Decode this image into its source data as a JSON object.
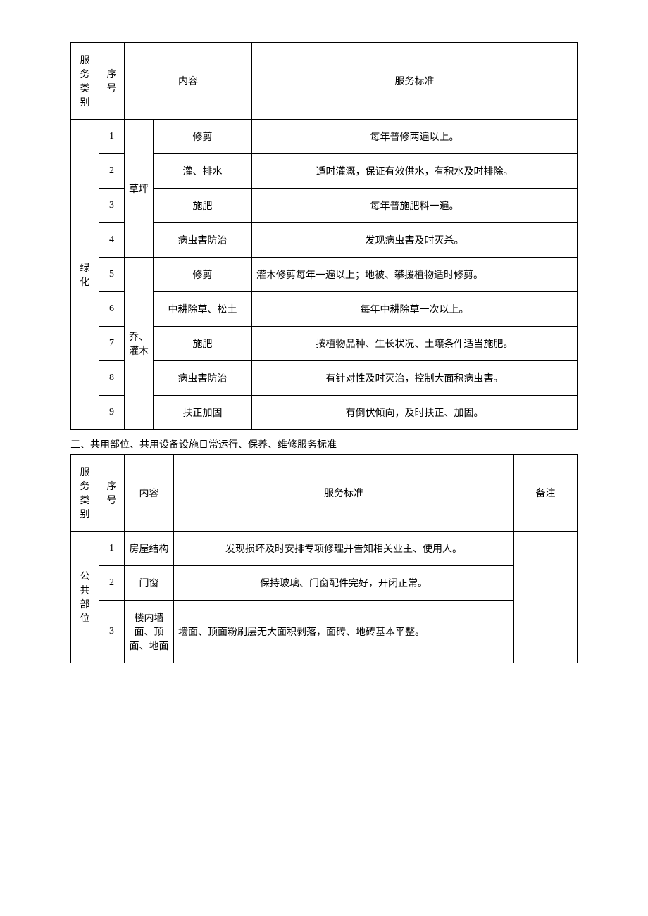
{
  "table1": {
    "header": {
      "category": "服务类别",
      "seq": "序号",
      "content": "内容",
      "standard": "服务标准"
    },
    "category_label": "绿化",
    "subcategories": {
      "lawn": "草坪",
      "trees": "乔、灌木"
    },
    "rows": [
      {
        "seq": "1",
        "content": "修剪",
        "standard": "每年普修两遍以上。"
      },
      {
        "seq": "2",
        "content": "灌、排水",
        "standard": "适时灌溉，保证有效供水，有积水及时排除。"
      },
      {
        "seq": "3",
        "content": "施肥",
        "standard": "每年普施肥料一遍。"
      },
      {
        "seq": "4",
        "content": "病虫害防治",
        "standard": "发现病虫害及时灭杀。"
      },
      {
        "seq": "5",
        "content": "修剪",
        "standard": "灌木修剪每年一遍以上；地被、攀援植物适时修剪。"
      },
      {
        "seq": "6",
        "content": "中耕除草、松土",
        "standard": "每年中耕除草一次以上。"
      },
      {
        "seq": "7",
        "content": "施肥",
        "standard": "按植物品种、生长状况、土壤条件适当施肥。"
      },
      {
        "seq": "8",
        "content": "病虫害防治",
        "standard": "有针对性及时灭治，控制大面积病虫害。"
      },
      {
        "seq": "9",
        "content": "扶正加固",
        "standard": "有倒伏倾向，及时扶正、加固。"
      }
    ]
  },
  "section2_title": "三、共用部位、共用设备设施日常运行、保养、维修服务标准",
  "table2": {
    "header": {
      "category": "服务类别",
      "seq": "序号",
      "content": "内容",
      "standard": "服务标准",
      "remark": "备注"
    },
    "category_label": "公共部位",
    "rows": [
      {
        "seq": "1",
        "content": "房屋结构",
        "standard": "发现损坏及时安排专项修理并告知相关业主、使用人。"
      },
      {
        "seq": "2",
        "content": "门窗",
        "standard": "保持玻璃、门窗配件完好，开闭正常。"
      },
      {
        "seq": "3",
        "content": "楼内墙面、顶面、地面",
        "standard": "墙面、顶面粉刷层无大面积剥落，面砖、地砖基本平整。"
      }
    ]
  },
  "colors": {
    "text": "#000000",
    "border": "#000000",
    "background": "#ffffff"
  }
}
